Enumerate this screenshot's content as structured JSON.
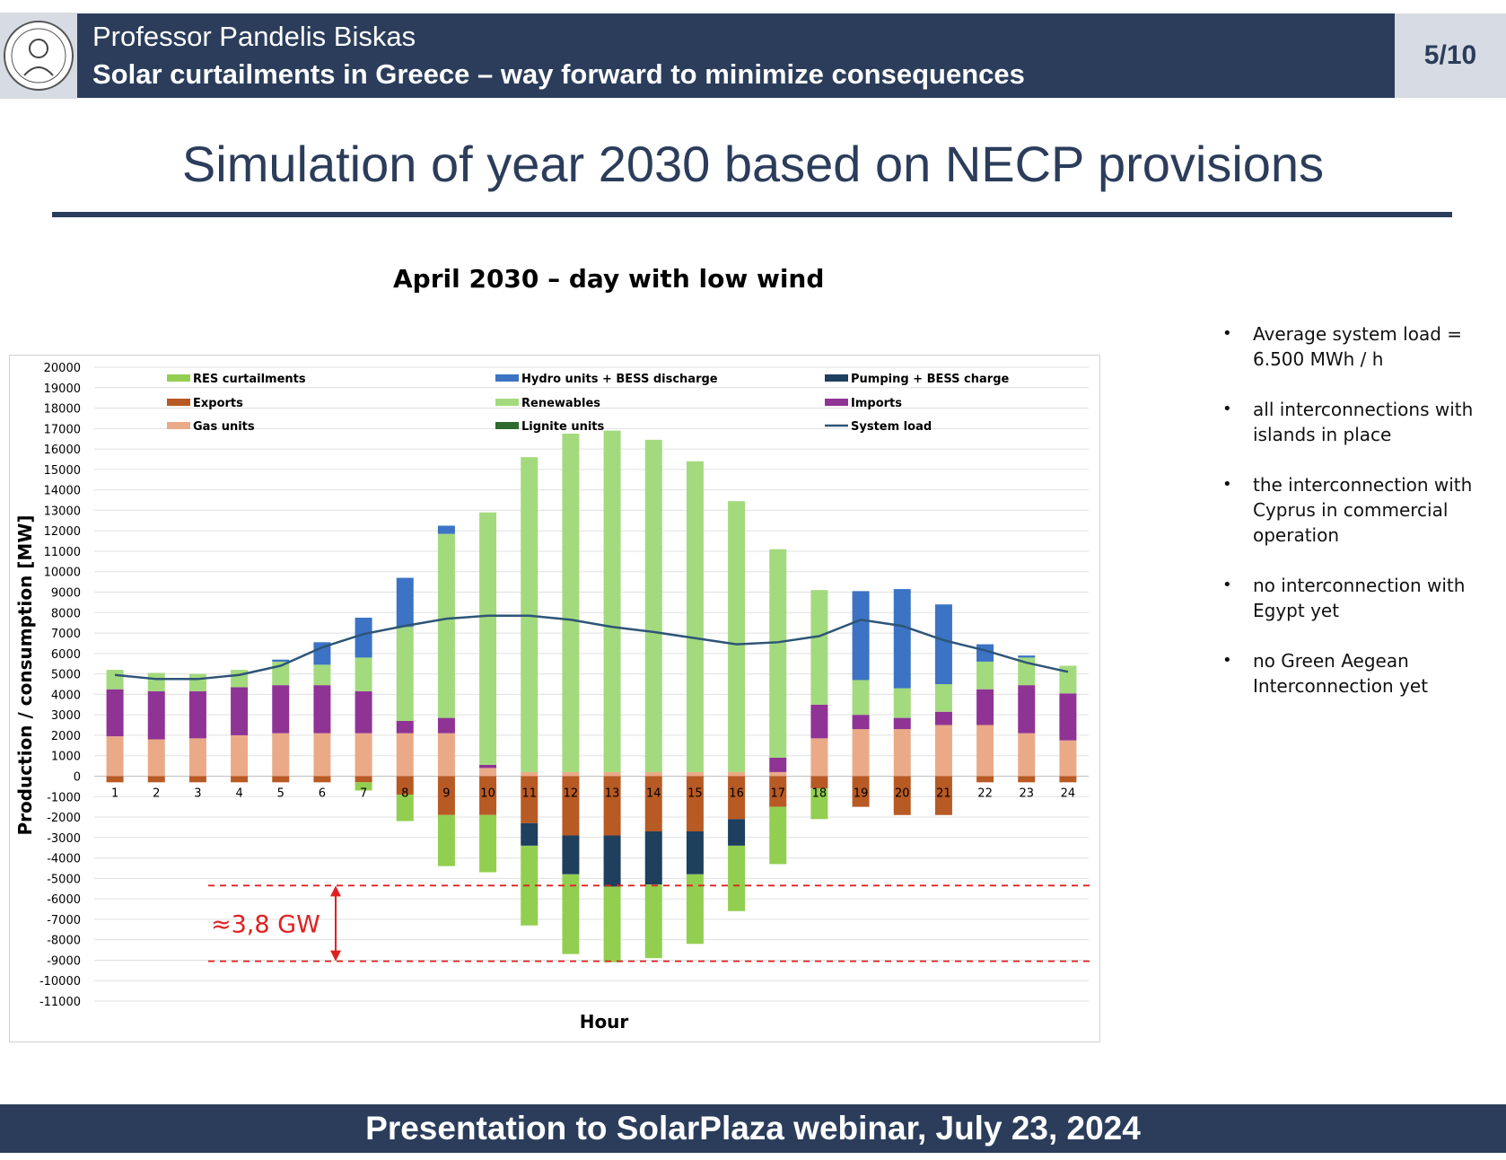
{
  "header": {
    "author": "Professor Pandelis Biskas",
    "subtitle": "Solar curtailments in Greece – way forward to minimize consequences",
    "page": "5/10"
  },
  "slide_title": "Simulation of year 2030 based on NECP provisions",
  "bullets": [
    "Average system load = 6.500 MWh / h",
    "all interconnections with islands in place",
    "the interconnection with Cyprus in commercial operation",
    "no  interconnection with Egypt yet",
    "no Green Aegean Interconnection yet"
  ],
  "footer": "Presentation to SolarPlaza webinar, July 23, 2024",
  "colors": {
    "brand_navy": "#2b3d5b",
    "res_curtailments": "#92cf50",
    "hydro_bess": "#3c73c4",
    "pumping_bess": "#1e3f5e",
    "exports": "#b85a24",
    "renewables": "#a3da7d",
    "imports": "#8f3495",
    "gas": "#eaaa88",
    "lignite": "#2f6b2f",
    "system_load": "#2e5577",
    "annotation": "#e02020"
  },
  "chart_data": {
    "type": "bar",
    "stacked": true,
    "title": "April 2030 – day with low wind",
    "xlabel": "Hour",
    "ylabel": "Production / consumption [MW]",
    "ylim": [
      -11000,
      20000
    ],
    "ytick_step": 1000,
    "grid": true,
    "legend_position": "top",
    "categories": [
      "1",
      "2",
      "3",
      "4",
      "5",
      "6",
      "7",
      "8",
      "9",
      "10",
      "11",
      "12",
      "13",
      "14",
      "15",
      "16",
      "17",
      "18",
      "19",
      "20",
      "21",
      "22",
      "23",
      "24"
    ],
    "series": [
      {
        "name": "Gas units",
        "color_key": "gas",
        "values": [
          1950,
          1800,
          1850,
          2000,
          2100,
          2100,
          2100,
          2100,
          2100,
          400,
          200,
          200,
          200,
          200,
          200,
          200,
          200,
          1850,
          2300,
          2300,
          2500,
          2500,
          2100,
          1750
        ]
      },
      {
        "name": "Imports",
        "color_key": "imports",
        "values": [
          2300,
          2350,
          2300,
          2350,
          2350,
          2350,
          2050,
          600,
          750,
          150,
          0,
          0,
          0,
          0,
          0,
          0,
          700,
          1650,
          700,
          550,
          650,
          1750,
          2350,
          2300
        ]
      },
      {
        "name": "Lignite units",
        "color_key": "lignite",
        "values": [
          0,
          0,
          0,
          0,
          0,
          0,
          0,
          0,
          0,
          0,
          0,
          0,
          0,
          0,
          0,
          0,
          0,
          0,
          0,
          0,
          0,
          0,
          0,
          0
        ]
      },
      {
        "name": "Renewables",
        "color_key": "renewables",
        "values": [
          950,
          900,
          850,
          850,
          1150,
          1000,
          1650,
          4600,
          9000,
          12350,
          15400,
          16550,
          16700,
          16250,
          15200,
          13250,
          10200,
          5600,
          1700,
          1450,
          1350,
          1350,
          1350,
          1350
        ]
      },
      {
        "name": "Hydro units + BESS discharge",
        "color_key": "hydro_bess",
        "values": [
          0,
          0,
          0,
          0,
          100,
          1100,
          1950,
          2400,
          400,
          0,
          0,
          0,
          0,
          0,
          0,
          0,
          0,
          0,
          4350,
          4850,
          3900,
          850,
          100,
          0
        ]
      },
      {
        "name": "Exports",
        "color_key": "exports",
        "values": [
          -300,
          -300,
          -300,
          -300,
          -300,
          -300,
          -300,
          -900,
          -1900,
          -1900,
          -2300,
          -2900,
          -2900,
          -2700,
          -2700,
          -2100,
          -1500,
          -600,
          -1500,
          -1900,
          -1900,
          -300,
          -300,
          -300
        ]
      },
      {
        "name": "Pumping + BESS charge",
        "color_key": "pumping_bess",
        "values": [
          0,
          0,
          0,
          0,
          0,
          0,
          0,
          0,
          0,
          0,
          -1100,
          -1900,
          -2500,
          -2600,
          -2100,
          -1300,
          0,
          0,
          0,
          0,
          0,
          0,
          0,
          0
        ]
      },
      {
        "name": "RES curtailments",
        "color_key": "res_curtailments",
        "values": [
          0,
          0,
          0,
          0,
          0,
          0,
          -400,
          -1300,
          -2500,
          -2800,
          -3900,
          -3900,
          -3700,
          -3600,
          -3400,
          -3200,
          -2800,
          -1500,
          0,
          0,
          0,
          0,
          0,
          0
        ]
      }
    ],
    "line": {
      "name": "System load",
      "color_key": "system_load",
      "values": [
        4950,
        4750,
        4750,
        4950,
        5400,
        6300,
        6950,
        7350,
        7700,
        7850,
        7850,
        7650,
        7300,
        7050,
        6750,
        6450,
        6550,
        6850,
        7650,
        7350,
        6650,
        6150,
        5550,
        5100
      ]
    },
    "legend_order": [
      "RES curtailments",
      "Hydro units + BESS discharge",
      "Pumping + BESS charge",
      "Exports",
      "Renewables",
      "Imports",
      "Gas units",
      "Lignite units",
      "System load"
    ],
    "annotation": {
      "label": "≈3,8 GW",
      "levels": [
        -5350,
        -9050
      ]
    }
  }
}
